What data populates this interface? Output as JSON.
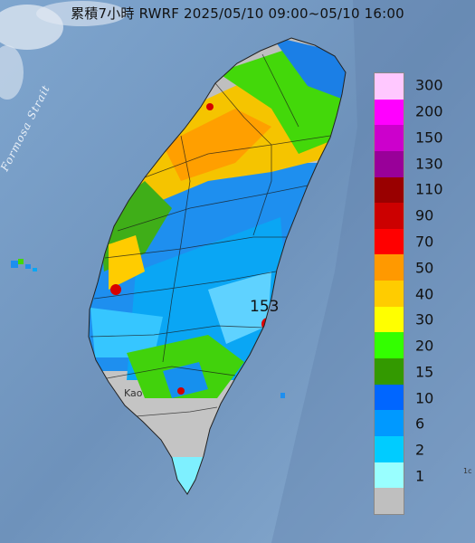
{
  "title": "累積7小時 RWRF 2025/05/10 09:00~05/10 16:00",
  "map_labels": {
    "strait": "Formosa Strait",
    "max_value": "153",
    "city": "Kao",
    "corner": "1c"
  },
  "legend": {
    "items": [
      {
        "label": "300",
        "color": "#ffc8ff"
      },
      {
        "label": "200",
        "color": "#ff00ff"
      },
      {
        "label": "150",
        "color": "#cc00cc"
      },
      {
        "label": "130",
        "color": "#990099"
      },
      {
        "label": "110",
        "color": "#990000"
      },
      {
        "label": "90",
        "color": "#cc0000"
      },
      {
        "label": "70",
        "color": "#ff0000"
      },
      {
        "label": "50",
        "color": "#ff9900"
      },
      {
        "label": "40",
        "color": "#ffcc00"
      },
      {
        "label": "30",
        "color": "#ffff00"
      },
      {
        "label": "20",
        "color": "#33ff00"
      },
      {
        "label": "15",
        "color": "#339900"
      },
      {
        "label": "10",
        "color": "#0066ff"
      },
      {
        "label": "6",
        "color": "#0099ff"
      },
      {
        "label": "2",
        "color": "#00ccff"
      },
      {
        "label": "1",
        "color": "#99ffff"
      },
      {
        "label": "",
        "color": "#bfbfbf"
      }
    ]
  }
}
